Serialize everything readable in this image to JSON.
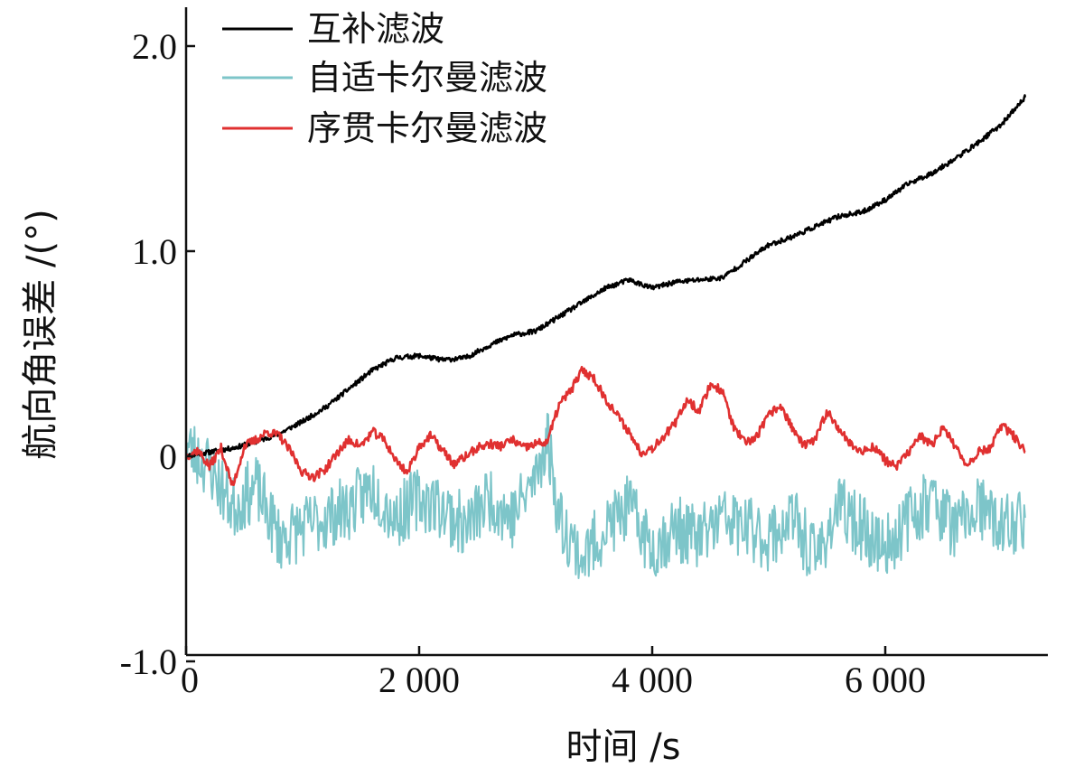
{
  "chart_data": {
    "type": "line",
    "xlabel": "时间 /s",
    "ylabel": "航向角误差 /(°)",
    "xlim": [
      0,
      7600
    ],
    "ylim": [
      -1.0,
      2.2
    ],
    "xticks": [
      {
        "value": 0,
        "label": "0"
      },
      {
        "value": 2000,
        "label": "2 000"
      },
      {
        "value": 4000,
        "label": "4 000"
      },
      {
        "value": 6000,
        "label": "6 000"
      }
    ],
    "yticks": [
      {
        "value": -1.0,
        "label": "-1.0"
      },
      {
        "value": 0,
        "label": "0"
      },
      {
        "value": 1.0,
        "label": "1.0"
      },
      {
        "value": 2.0,
        "label": "2.0"
      }
    ],
    "grid": false,
    "legend_position": "top-left",
    "series": [
      {
        "name": "互补滤波",
        "color": "#000000",
        "x": [
          0,
          200,
          400,
          600,
          800,
          1000,
          1200,
          1400,
          1600,
          1800,
          2000,
          2200,
          2400,
          2600,
          2800,
          3000,
          3200,
          3400,
          3600,
          3800,
          4000,
          4200,
          4400,
          4600,
          4800,
          5000,
          5200,
          5400,
          5600,
          5800,
          6000,
          6200,
          6400,
          6600,
          6800,
          7000,
          7200
        ],
        "values": [
          0.0,
          0.02,
          0.04,
          0.07,
          0.11,
          0.17,
          0.24,
          0.33,
          0.42,
          0.48,
          0.49,
          0.47,
          0.48,
          0.54,
          0.59,
          0.61,
          0.68,
          0.75,
          0.82,
          0.86,
          0.82,
          0.85,
          0.86,
          0.87,
          0.95,
          1.03,
          1.07,
          1.12,
          1.17,
          1.19,
          1.25,
          1.33,
          1.38,
          1.45,
          1.53,
          1.62,
          1.75
        ]
      },
      {
        "name": "自适卡尔曼滤波",
        "color": "#7dc5c9",
        "x": [
          0,
          200,
          400,
          600,
          800,
          1000,
          1200,
          1400,
          1600,
          1800,
          2000,
          2200,
          2400,
          2600,
          2800,
          3000,
          3100,
          3200,
          3400,
          3600,
          3800,
          4000,
          4200,
          4400,
          4600,
          4800,
          5000,
          5200,
          5400,
          5600,
          5800,
          6000,
          6200,
          6400,
          6600,
          6800,
          7000,
          7200
        ],
        "values": [
          0.05,
          -0.05,
          -0.25,
          -0.15,
          -0.4,
          -0.35,
          -0.3,
          -0.25,
          -0.15,
          -0.3,
          -0.2,
          -0.25,
          -0.35,
          -0.2,
          -0.3,
          -0.1,
          0.1,
          -0.3,
          -0.5,
          -0.35,
          -0.25,
          -0.45,
          -0.35,
          -0.4,
          -0.3,
          -0.35,
          -0.4,
          -0.3,
          -0.5,
          -0.25,
          -0.35,
          -0.45,
          -0.3,
          -0.2,
          -0.35,
          -0.25,
          -0.35,
          -0.3
        ]
      },
      {
        "name": "序贯卡尔曼滤波",
        "color": "#e03030",
        "x": [
          0,
          100,
          200,
          300,
          400,
          500,
          600,
          700,
          800,
          900,
          1000,
          1100,
          1200,
          1300,
          1400,
          1500,
          1600,
          1700,
          1800,
          1900,
          2000,
          2100,
          2200,
          2300,
          2400,
          2500,
          2600,
          2700,
          2800,
          2900,
          3000,
          3100,
          3200,
          3300,
          3400,
          3500,
          3600,
          3700,
          3800,
          3900,
          4000,
          4100,
          4200,
          4300,
          4400,
          4500,
          4600,
          4700,
          4800,
          4900,
          5000,
          5100,
          5200,
          5300,
          5400,
          5500,
          5600,
          5700,
          5800,
          5900,
          6000,
          6100,
          6200,
          6300,
          6400,
          6500,
          6600,
          6700,
          6800,
          6900,
          7000,
          7100,
          7200
        ],
        "values": [
          0.0,
          0.03,
          -0.05,
          0.04,
          -0.15,
          0.05,
          0.08,
          0.12,
          0.1,
          0.02,
          -0.08,
          -0.1,
          -0.06,
          0.02,
          0.08,
          0.05,
          0.12,
          0.08,
          -0.02,
          -0.08,
          0.05,
          0.1,
          0.03,
          -0.04,
          0.0,
          0.04,
          0.06,
          0.05,
          0.08,
          0.04,
          0.06,
          0.07,
          0.25,
          0.32,
          0.42,
          0.38,
          0.28,
          0.2,
          0.12,
          0.02,
          0.04,
          0.1,
          0.16,
          0.28,
          0.22,
          0.35,
          0.32,
          0.14,
          0.06,
          0.1,
          0.2,
          0.25,
          0.14,
          0.05,
          0.08,
          0.22,
          0.14,
          0.06,
          0.02,
          0.05,
          -0.02,
          -0.05,
          0.02,
          0.1,
          0.05,
          0.15,
          0.04,
          -0.04,
          0.02,
          0.04,
          0.15,
          0.1,
          0.02
        ]
      }
    ]
  }
}
